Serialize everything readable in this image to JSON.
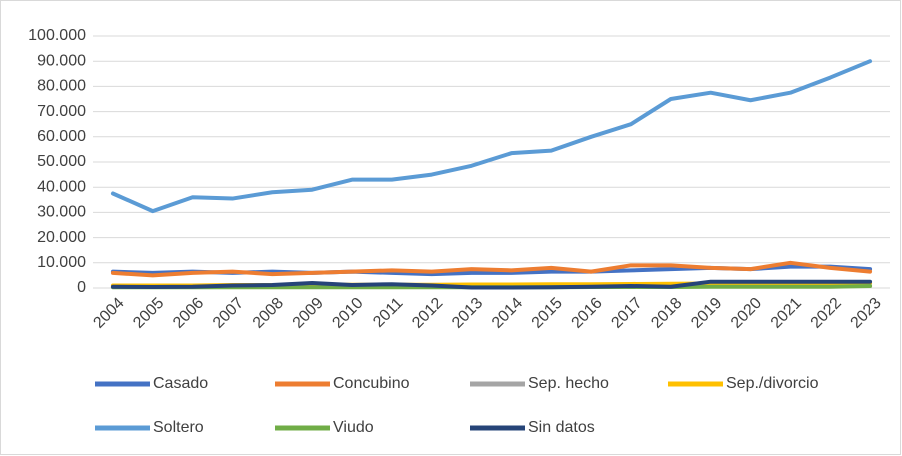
{
  "chart_data": {
    "type": "line",
    "categories": [
      "2004",
      "2005",
      "2006",
      "2007",
      "2008",
      "2009",
      "2010",
      "2011",
      "2012",
      "2013",
      "2014",
      "2015",
      "2016",
      "2017",
      "2018",
      "2019",
      "2020",
      "2021",
      "2022",
      "2023"
    ],
    "series": [
      {
        "name": "Casado",
        "color": "#4472c4",
        "values": [
          6500,
          6000,
          6500,
          6000,
          6500,
          6000,
          6500,
          6000,
          5500,
          6000,
          6000,
          6500,
          6500,
          7000,
          7500,
          8000,
          7500,
          8500,
          8500,
          7500
        ]
      },
      {
        "name": "Concubino",
        "color": "#ed7d31",
        "values": [
          6000,
          5000,
          6000,
          6500,
          5500,
          6000,
          6500,
          7000,
          6500,
          7500,
          7000,
          8000,
          6500,
          9000,
          9000,
          8000,
          7500,
          10000,
          8000,
          6500
        ]
      },
      {
        "name": "Sep. hecho",
        "color": "#a5a5a5",
        "values": [
          500,
          500,
          500,
          500,
          500,
          500,
          500,
          500,
          500,
          500,
          500,
          500,
          600,
          600,
          700,
          700,
          700,
          800,
          800,
          800
        ]
      },
      {
        "name": "Sep./divorcio",
        "color": "#ffc000",
        "values": [
          1000,
          1000,
          1000,
          1200,
          1200,
          1200,
          1300,
          1300,
          1300,
          1400,
          1400,
          1500,
          1500,
          1600,
          1700,
          1800,
          1800,
          2000,
          2000,
          2000
        ]
      },
      {
        "name": "Soltero",
        "color": "#5b9bd5",
        "values": [
          37500,
          30500,
          36000,
          35500,
          38000,
          39000,
          43000,
          43000,
          45000,
          48500,
          53500,
          54500,
          60000,
          65000,
          75000,
          77500,
          74500,
          77500,
          83500,
          90000
        ]
      },
      {
        "name": "Viudo",
        "color": "#70ad47",
        "values": [
          300,
          300,
          300,
          300,
          300,
          300,
          300,
          300,
          300,
          300,
          300,
          300,
          400,
          400,
          400,
          500,
          500,
          500,
          500,
          800
        ]
      },
      {
        "name": "Sin datos",
        "color": "#264478",
        "values": [
          500,
          400,
          500,
          1000,
          1200,
          2000,
          1200,
          1500,
          1000,
          200,
          200,
          300,
          500,
          800,
          500,
          2500,
          2500,
          2500,
          2500,
          2500
        ]
      }
    ],
    "ylim": [
      0,
      100000
    ],
    "yticks": [
      0,
      {
        "value": 10000,
        "label": "10.000"
      },
      {
        "value": 20000,
        "label": "20.000"
      },
      {
        "value": 30000,
        "label": "30.000"
      },
      {
        "value": 40000,
        "label": "40.000"
      },
      {
        "value": 50000,
        "label": "50.000"
      },
      {
        "value": 60000,
        "label": "60.000"
      },
      {
        "value": 70000,
        "label": "70.000"
      },
      {
        "value": 80000,
        "label": "80.000"
      },
      {
        "value": 90000,
        "label": "90.000"
      },
      {
        "value": 100000,
        "label": "100.000"
      }
    ],
    "legend": "bottom"
  }
}
